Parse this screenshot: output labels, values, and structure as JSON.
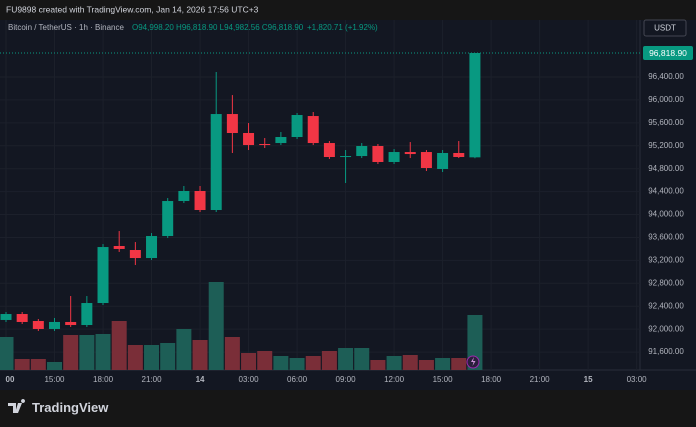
{
  "chart_data": {
    "type": "candlestick",
    "credit": "FU9898 created with TradingView.com, Jan 14, 2026 17:56 UTC+3",
    "symbol": "Bitcoin / TetherUS · 1h · Binance",
    "ohlc_text": "O94,998.20 H96,818.90 L94,982.56 C96,818.90",
    "change_text": "+1,820.71 (+1.92%)",
    "currency": "USDT",
    "brand": "TradingView",
    "categories": [
      "00",
      null,
      null,
      "15:00",
      null,
      null,
      "18:00",
      null,
      null,
      "21:00",
      null,
      null,
      "14",
      null,
      null,
      "03:00",
      null,
      null,
      "06:00",
      null,
      null,
      "09:00",
      null,
      null,
      "12:00",
      null,
      null,
      "15:00",
      null,
      null,
      "18:00",
      null,
      null,
      "21:00",
      null,
      null,
      "15",
      null,
      null,
      "03:00"
    ],
    "open": [
      92160,
      92264,
      92142,
      92003,
      92125,
      92072,
      92456,
      93451,
      93381,
      93241,
      93625,
      94236,
      94411,
      94079,
      95754,
      95423,
      95231,
      95248,
      95353,
      95719,
      95248,
      95004,
      95021,
      95196,
      94917,
      95091,
      95091,
      94795,
      95074,
      94998.2,
      null,
      null,
      null,
      null,
      null,
      null,
      null,
      null,
      null,
      null
    ],
    "high": [
      92299,
      92299,
      92177,
      92195,
      92578,
      92578,
      93485,
      93712,
      93520,
      93677,
      94288,
      94498,
      94498,
      96487,
      96085,
      95597,
      95335,
      95440,
      95772,
      95789,
      95283,
      95126,
      95248,
      95231,
      95143,
      95265,
      95126,
      95126,
      95283,
      96818.9,
      null,
      null,
      null,
      null,
      null,
      null,
      null,
      null,
      null,
      null
    ],
    "low": [
      92125,
      92090,
      91968,
      91968,
      92038,
      92038,
      92421,
      93347,
      93119,
      93206,
      93590,
      94201,
      94044,
      94044,
      95074,
      95126,
      95161,
      95213,
      95318,
      95213,
      94969,
      94550,
      94986,
      94882,
      94882,
      94986,
      94760,
      94742,
      94986,
      94982.56,
      null,
      null,
      null,
      null,
      null,
      null,
      null,
      null,
      null,
      null
    ],
    "close": [
      92264,
      92125,
      92003,
      92125,
      92072,
      92456,
      93433,
      93399,
      93241,
      93625,
      94236,
      94411,
      94079,
      95754,
      95423,
      95213,
      95213,
      95353,
      95737,
      95248,
      95004,
      95021,
      95196,
      94917,
      95091,
      95056,
      94812,
      95074,
      95004,
      96818.9,
      null,
      null,
      null,
      null,
      null,
      null,
      null,
      null,
      null,
      null
    ],
    "volume": [
      33,
      11,
      11,
      8,
      35,
      35,
      36,
      49,
      25,
      25,
      27,
      41,
      30,
      88,
      33,
      17,
      19,
      14,
      12,
      14,
      19,
      22,
      22,
      10,
      14,
      15,
      10,
      12,
      12,
      55,
      null,
      null,
      null,
      null,
      null,
      null,
      null,
      null,
      null,
      null
    ],
    "volume_lim": [
      0,
      350
    ],
    "up_color": "#089981",
    "down_color": "#f23645",
    "volume_up_color": "#1d5e56",
    "volume_down_color": "#7a2e38",
    "ylim": [
      91287,
      97395
    ],
    "yticks": [
      {
        "value": 96400,
        "label": "96,400.00"
      },
      {
        "value": 96000,
        "label": "96,000.00"
      },
      {
        "value": 95600,
        "label": "95,600.00"
      },
      {
        "value": 95200,
        "label": "95,200.00"
      },
      {
        "value": 94800,
        "label": "94,800.00"
      },
      {
        "value": 94400,
        "label": "94,400.00"
      },
      {
        "value": 94000,
        "label": "94,000.00"
      },
      {
        "value": 93600,
        "label": "93,600.00"
      },
      {
        "value": 93200,
        "label": "93,200.00"
      },
      {
        "value": 92800,
        "label": "92,800.00"
      },
      {
        "value": 92400,
        "label": "92,400.00"
      },
      {
        "value": 92000,
        "label": "92,000.00"
      },
      {
        "value": 91600,
        "label": "91,600.00"
      }
    ],
    "last_price": {
      "value": 96818.9,
      "label": "96,818.90"
    },
    "grid": true
  }
}
